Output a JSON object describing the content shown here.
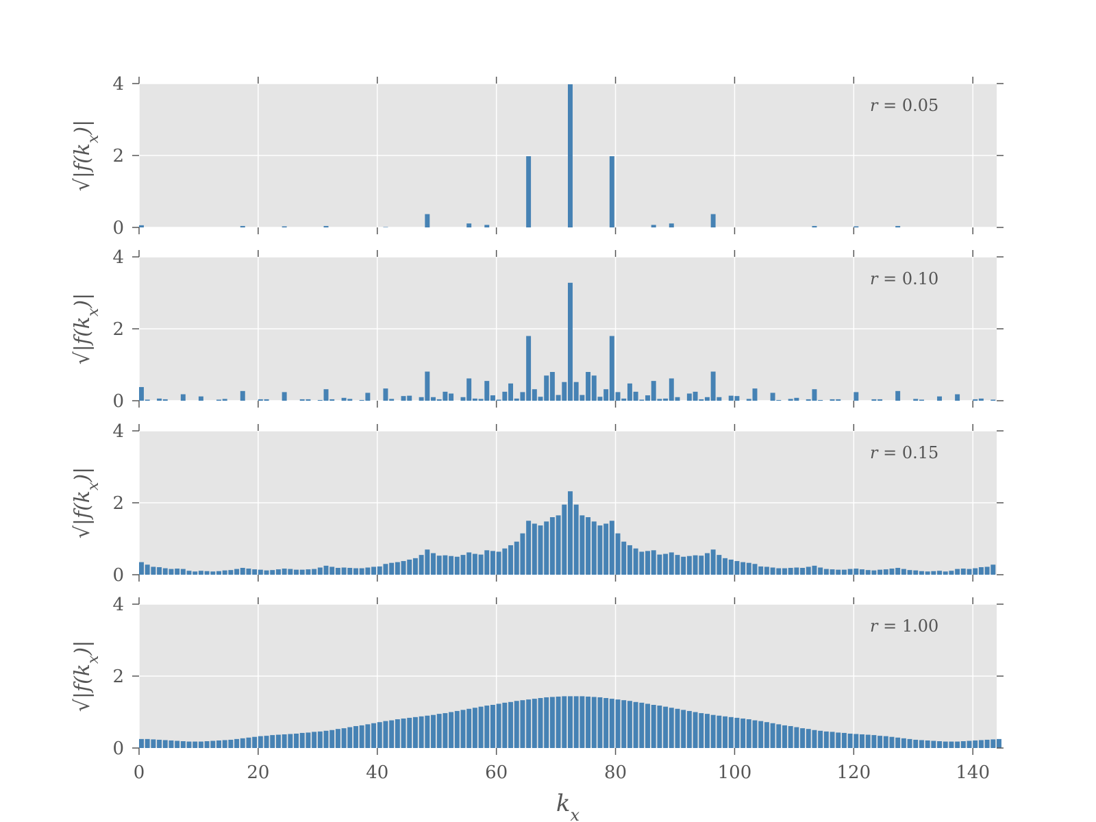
{
  "chart_data": {
    "type": "bar",
    "x_start": 0,
    "x_step": 1,
    "xlim": [
      0,
      144
    ],
    "ylim": [
      0,
      4
    ],
    "xticks": [
      "0",
      "20",
      "40",
      "60",
      "80",
      "100",
      "120",
      "140"
    ],
    "yticks": [
      "0",
      "2",
      "4"
    ],
    "xlabel": "k_x",
    "ylabel": "√|f(k_x)|",
    "grid": true,
    "bar_color": "#4682b4",
    "panels": [
      {
        "annotation": "r = 0.05",
        "values": [
          0.06,
          0.0,
          0.0,
          0.0,
          0.0,
          0.0,
          0.0,
          0.0,
          0.0,
          0.0,
          0.0,
          0.0,
          0.0,
          0.0,
          0.0,
          0.0,
          0.0,
          0.04,
          0.0,
          0.0,
          0.0,
          0.0,
          0.0,
          0.0,
          0.03,
          0.0,
          0.0,
          0.0,
          0.0,
          0.0,
          0.0,
          0.04,
          0.0,
          0.0,
          0.0,
          0.0,
          0.0,
          0.0,
          0.0,
          0.0,
          0.0,
          0.01,
          0.0,
          0.0,
          0.0,
          0.0,
          0.0,
          0.0,
          0.37,
          0.0,
          0.0,
          0.0,
          0.0,
          0.0,
          0.0,
          0.11,
          0.0,
          0.0,
          0.07,
          0.0,
          0.0,
          0.0,
          0.0,
          0.0,
          0.0,
          1.98,
          0.0,
          0.0,
          0.0,
          0.0,
          0.0,
          0.0,
          3.98,
          0.0,
          0.0,
          0.0,
          0.0,
          0.0,
          0.0,
          1.98,
          0.0,
          0.0,
          0.0,
          0.0,
          0.0,
          0.0,
          0.07,
          0.0,
          0.0,
          0.11,
          0.0,
          0.0,
          0.0,
          0.0,
          0.0,
          0.0,
          0.37,
          0.0,
          0.0,
          0.0,
          0.0,
          0.0,
          0.0,
          0.0,
          0.0,
          0.0,
          0.0,
          0.0,
          0.0,
          0.0,
          0.0,
          0.0,
          0.0,
          0.04,
          0.0,
          0.0,
          0.0,
          0.0,
          0.0,
          0.0,
          0.03,
          0.0,
          0.0,
          0.0,
          0.0,
          0.0,
          0.0,
          0.04,
          0.0,
          0.0,
          0.0,
          0.0,
          0.0,
          0.0,
          0.0,
          0.0,
          0.0,
          0.0,
          0.0,
          0.0,
          0.0,
          0.0,
          0.0,
          0.0
        ]
      },
      {
        "annotation": "r = 0.10",
        "values": [
          0.38,
          0.03,
          0.0,
          0.06,
          0.04,
          0.0,
          0.0,
          0.18,
          0.0,
          0.0,
          0.12,
          0.0,
          0.0,
          0.03,
          0.05,
          0.0,
          0.0,
          0.27,
          0.0,
          0.0,
          0.04,
          0.04,
          0.0,
          0.0,
          0.24,
          0.0,
          0.0,
          0.04,
          0.04,
          0.0,
          0.02,
          0.32,
          0.04,
          0.0,
          0.08,
          0.05,
          0.0,
          0.02,
          0.22,
          0.0,
          0.0,
          0.34,
          0.05,
          0.0,
          0.13,
          0.14,
          0.0,
          0.1,
          0.81,
          0.1,
          0.04,
          0.25,
          0.2,
          0.0,
          0.1,
          0.62,
          0.06,
          0.05,
          0.55,
          0.15,
          0.03,
          0.25,
          0.48,
          0.06,
          0.24,
          1.8,
          0.32,
          0.11,
          0.7,
          0.8,
          0.16,
          0.52,
          3.28,
          0.52,
          0.16,
          0.8,
          0.7,
          0.11,
          0.32,
          1.8,
          0.24,
          0.06,
          0.48,
          0.25,
          0.03,
          0.15,
          0.55,
          0.05,
          0.06,
          0.62,
          0.1,
          0.0,
          0.2,
          0.25,
          0.04,
          0.1,
          0.81,
          0.1,
          0.0,
          0.14,
          0.13,
          0.0,
          0.05,
          0.34,
          0.0,
          0.0,
          0.22,
          0.02,
          0.0,
          0.05,
          0.08,
          0.0,
          0.04,
          0.32,
          0.02,
          0.0,
          0.04,
          0.04,
          0.0,
          0.0,
          0.24,
          0.0,
          0.0,
          0.04,
          0.04,
          0.0,
          0.0,
          0.27,
          0.0,
          0.0,
          0.05,
          0.03,
          0.0,
          0.0,
          0.12,
          0.0,
          0.0,
          0.18,
          0.0,
          0.0,
          0.04,
          0.06,
          0.0,
          0.03
        ]
      },
      {
        "annotation": "r = 0.15",
        "values": [
          0.35,
          0.28,
          0.22,
          0.21,
          0.18,
          0.16,
          0.17,
          0.16,
          0.11,
          0.09,
          0.11,
          0.1,
          0.09,
          0.1,
          0.12,
          0.13,
          0.16,
          0.19,
          0.17,
          0.15,
          0.14,
          0.12,
          0.13,
          0.15,
          0.17,
          0.16,
          0.14,
          0.14,
          0.15,
          0.16,
          0.2,
          0.25,
          0.22,
          0.19,
          0.2,
          0.19,
          0.18,
          0.18,
          0.2,
          0.22,
          0.23,
          0.3,
          0.33,
          0.35,
          0.38,
          0.42,
          0.46,
          0.55,
          0.7,
          0.6,
          0.53,
          0.54,
          0.52,
          0.5,
          0.55,
          0.62,
          0.58,
          0.56,
          0.68,
          0.66,
          0.64,
          0.73,
          0.82,
          0.92,
          1.15,
          1.5,
          1.42,
          1.37,
          1.48,
          1.6,
          1.65,
          1.95,
          2.32,
          1.95,
          1.65,
          1.6,
          1.48,
          1.37,
          1.42,
          1.5,
          1.15,
          0.92,
          0.82,
          0.73,
          0.64,
          0.66,
          0.68,
          0.56,
          0.58,
          0.62,
          0.55,
          0.5,
          0.52,
          0.54,
          0.53,
          0.6,
          0.7,
          0.55,
          0.46,
          0.42,
          0.38,
          0.35,
          0.33,
          0.3,
          0.23,
          0.22,
          0.2,
          0.18,
          0.18,
          0.19,
          0.2,
          0.19,
          0.22,
          0.25,
          0.2,
          0.16,
          0.15,
          0.14,
          0.14,
          0.16,
          0.17,
          0.15,
          0.13,
          0.12,
          0.14,
          0.15,
          0.17,
          0.19,
          0.16,
          0.13,
          0.12,
          0.1,
          0.09,
          0.1,
          0.11,
          0.09,
          0.11,
          0.16,
          0.17,
          0.16,
          0.18,
          0.21,
          0.22,
          0.28
        ]
      },
      {
        "annotation": "r = 1.00",
        "values": [
          0.25,
          0.25,
          0.24,
          0.23,
          0.22,
          0.21,
          0.2,
          0.19,
          0.18,
          0.18,
          0.18,
          0.19,
          0.2,
          0.21,
          0.22,
          0.23,
          0.25,
          0.27,
          0.29,
          0.31,
          0.33,
          0.34,
          0.36,
          0.37,
          0.38,
          0.39,
          0.4,
          0.42,
          0.43,
          0.45,
          0.46,
          0.48,
          0.5,
          0.53,
          0.55,
          0.58,
          0.61,
          0.63,
          0.66,
          0.69,
          0.72,
          0.75,
          0.77,
          0.8,
          0.82,
          0.84,
          0.86,
          0.88,
          0.9,
          0.92,
          0.95,
          0.97,
          1.0,
          1.03,
          1.06,
          1.09,
          1.12,
          1.15,
          1.18,
          1.2,
          1.23,
          1.26,
          1.28,
          1.31,
          1.33,
          1.35,
          1.37,
          1.39,
          1.41,
          1.42,
          1.43,
          1.44,
          1.44,
          1.44,
          1.44,
          1.43,
          1.42,
          1.41,
          1.39,
          1.37,
          1.35,
          1.33,
          1.31,
          1.28,
          1.26,
          1.23,
          1.2,
          1.18,
          1.15,
          1.12,
          1.09,
          1.06,
          1.03,
          1.0,
          0.97,
          0.95,
          0.92,
          0.9,
          0.88,
          0.86,
          0.84,
          0.82,
          0.8,
          0.77,
          0.75,
          0.72,
          0.69,
          0.66,
          0.63,
          0.61,
          0.58,
          0.55,
          0.53,
          0.5,
          0.48,
          0.46,
          0.45,
          0.43,
          0.42,
          0.4,
          0.39,
          0.38,
          0.37,
          0.36,
          0.34,
          0.33,
          0.31,
          0.29,
          0.27,
          0.25,
          0.23,
          0.22,
          0.21,
          0.2,
          0.19,
          0.18,
          0.18,
          0.18,
          0.19,
          0.2,
          0.21,
          0.22,
          0.23,
          0.24,
          0.25
        ]
      }
    ]
  }
}
